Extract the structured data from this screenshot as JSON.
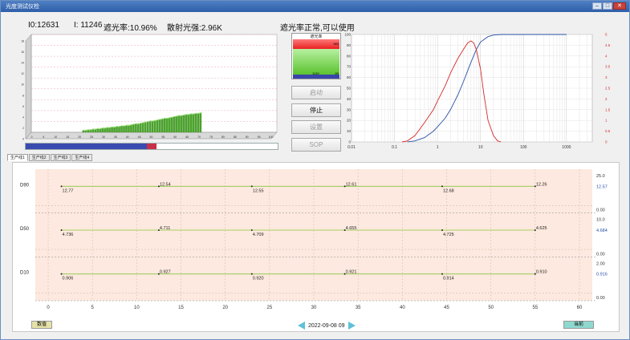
{
  "window": {
    "title": "光度测试仪检",
    "min_label": "–",
    "max_label": "□",
    "close_label": "✕"
  },
  "stats": {
    "i0": "I0:12631",
    "i": "I:  11246",
    "obscuration": "遮光率:10.96%",
    "scatter": "散射光强:2.96K"
  },
  "status_msg": "遮光率正常,可以使用",
  "meter": {
    "label": "遮光率",
    "top_value": "983",
    "mid_value": "1139",
    "right_value": "89"
  },
  "buttons": {
    "start": "启动",
    "stop": "停止",
    "reset": "设置",
    "sop": "SOP"
  },
  "progress": {
    "value": 0.52
  },
  "tabs": [
    "生产线1",
    "生产线2",
    "生产线3",
    "生产线4"
  ],
  "bottom_buttons": {
    "data": "数值",
    "current": "当前"
  },
  "date": "2022-09-08 09",
  "colors": {
    "accent": "#5fc1d8",
    "red": "#d62828",
    "blue": "#2950a8",
    "green": "#8cc63e",
    "fill": "#fde9df"
  },
  "chart_data": [
    {
      "type": "bar",
      "x": [
        0,
        5,
        10,
        15,
        20,
        25,
        30,
        35,
        40,
        45,
        50,
        55,
        60,
        65,
        70,
        75,
        80,
        85,
        90,
        95,
        100
      ],
      "x_ticks": [
        "0",
        "5",
        "10",
        "15",
        "20",
        "25",
        "30",
        "35",
        "40",
        "45",
        "50",
        "55",
        "60",
        "65",
        "70",
        "75",
        "80",
        "85",
        "90",
        "95",
        "100"
      ],
      "y_ticks": [
        "0",
        "2",
        "4",
        "6",
        "8",
        "10",
        "12",
        "14",
        "16",
        "18"
      ],
      "ylim": [
        0,
        18
      ],
      "bars": [
        [
          20,
          0.3
        ],
        [
          21,
          0.3
        ],
        [
          22,
          0.4
        ],
        [
          23,
          0.4
        ],
        [
          24,
          0.5
        ],
        [
          25,
          0.5
        ],
        [
          26,
          0.6
        ],
        [
          27,
          0.6
        ],
        [
          28,
          0.7
        ],
        [
          29,
          0.7
        ],
        [
          30,
          0.8
        ],
        [
          31,
          0.8
        ],
        [
          32,
          0.9
        ],
        [
          33,
          0.9
        ],
        [
          34,
          1.0
        ],
        [
          35,
          1.0
        ],
        [
          36,
          1.1
        ],
        [
          37,
          1.1
        ],
        [
          38,
          1.2
        ],
        [
          39,
          1.2
        ],
        [
          40,
          1.3
        ],
        [
          41,
          1.4
        ],
        [
          42,
          1.5
        ],
        [
          43,
          1.5
        ],
        [
          44,
          1.6
        ],
        [
          45,
          1.7
        ],
        [
          46,
          1.8
        ],
        [
          47,
          1.9
        ],
        [
          48,
          2.0
        ],
        [
          49,
          2.0
        ],
        [
          50,
          2.1
        ],
        [
          51,
          2.2
        ],
        [
          52,
          2.3
        ],
        [
          53,
          2.4
        ],
        [
          54,
          2.5
        ],
        [
          55,
          2.5
        ],
        [
          56,
          2.6
        ],
        [
          57,
          2.7
        ],
        [
          58,
          2.8
        ],
        [
          59,
          2.9
        ],
        [
          60,
          3.0
        ],
        [
          61,
          3.0
        ],
        [
          62,
          3.1
        ],
        [
          63,
          3.2
        ],
        [
          64,
          3.2
        ],
        [
          65,
          3.3
        ],
        [
          66,
          3.3
        ],
        [
          67,
          3.4
        ],
        [
          68,
          3.4
        ],
        [
          69,
          3.5
        ]
      ]
    },
    {
      "type": "line",
      "x_scale": "log",
      "x_ticks": [
        "0.01",
        "0.1",
        "1",
        "10",
        "100",
        "1000"
      ],
      "y_left_ticks": [
        "0",
        "10",
        "20",
        "30",
        "40",
        "50",
        "60",
        "70",
        "80",
        "90",
        "100"
      ],
      "y_right_ticks": [
        "0",
        "0.5",
        "1",
        "1.5",
        "2",
        "2.5",
        "3",
        "3.5",
        "4",
        "4.5",
        "5"
      ],
      "series": [
        {
          "axis": "left",
          "color": "#2950a8",
          "x": [
            0.2,
            0.3,
            0.5,
            0.8,
            1,
            1.5,
            2,
            3,
            4,
            5,
            6,
            8,
            10,
            15,
            20,
            30,
            50,
            100,
            1000
          ],
          "y": [
            0,
            1,
            4,
            10,
            14,
            22,
            30,
            44,
            56,
            66,
            74,
            86,
            93,
            98,
            99.5,
            100,
            100,
            100,
            100
          ]
        },
        {
          "axis": "right",
          "color": "#d62828",
          "x": [
            0.15,
            0.2,
            0.3,
            0.5,
            0.8,
            1,
            1.5,
            2,
            3,
            4,
            5,
            6,
            7,
            8,
            10,
            12,
            15,
            20,
            25,
            30
          ],
          "y": [
            0,
            0.05,
            0.3,
            0.9,
            1.5,
            1.9,
            2.6,
            3.2,
            3.9,
            4.3,
            4.6,
            4.7,
            4.6,
            4.3,
            3.4,
            2.2,
            1.0,
            0.3,
            0.05,
            0
          ]
        }
      ]
    },
    {
      "type": "line",
      "x_ticks": [
        "0",
        "5",
        "10",
        "15",
        "20",
        "25",
        "30",
        "35",
        "40",
        "45",
        "50",
        "55",
        "60"
      ],
      "xlim": [
        0,
        60
      ],
      "rows": [
        {
          "name": "D90",
          "right_ticks": [
            "25.0",
            "0.00"
          ],
          "current": "12.57",
          "points": [
            [
              1.5,
              12.77
            ],
            [
              12.5,
              12.54
            ],
            [
              23,
              12.55
            ],
            [
              33.5,
              12.61
            ],
            [
              44.5,
              12.68
            ],
            [
              55,
              12.26
            ]
          ]
        },
        {
          "name": "D50",
          "right_ticks": [
            "10.0",
            "0.00"
          ],
          "current": "4.684",
          "points": [
            [
              1.5,
              4.736
            ],
            [
              12.5,
              4.711
            ],
            [
              23,
              4.709
            ],
            [
              33.5,
              4.655
            ],
            [
              44.5,
              4.725
            ],
            [
              55,
              4.625
            ]
          ]
        },
        {
          "name": "D10",
          "right_ticks": [
            "2.00",
            "0.00"
          ],
          "current": "0.916",
          "points": [
            [
              1.5,
              0.906
            ],
            [
              12.5,
              0.927
            ],
            [
              23,
              0.92
            ],
            [
              33.5,
              0.921
            ],
            [
              44.5,
              0.914
            ],
            [
              55,
              0.91
            ]
          ]
        }
      ]
    }
  ]
}
